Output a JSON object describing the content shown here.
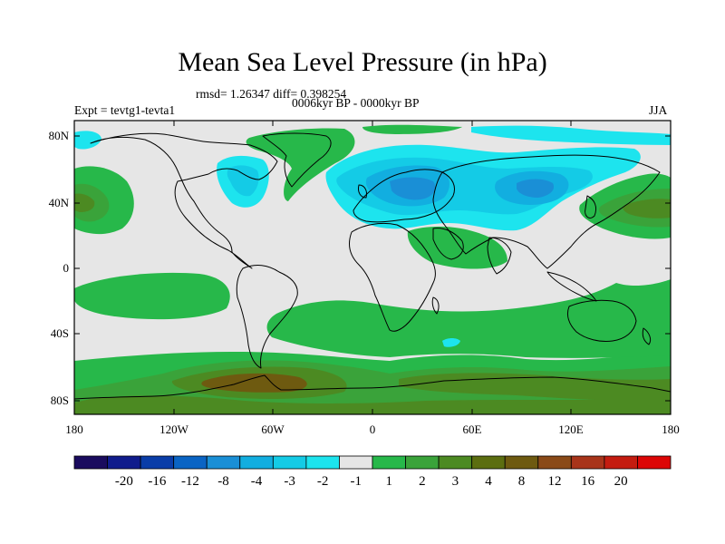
{
  "title": "Mean Sea Level Pressure (in hPa)",
  "stats": "rmsd= 1.26347 diff= 0.398254",
  "period": "0006kyr BP - 0000kyr BP",
  "experiment": "Expt = tevtg1-tevta1",
  "season": "JJA",
  "axes": {
    "lat_ticks": [
      "80N",
      "40N",
      "0",
      "40S",
      "80S"
    ],
    "lon_ticks": [
      "180",
      "120W",
      "60W",
      "0",
      "60E",
      "120E",
      "180"
    ]
  },
  "colorbar": {
    "colors": [
      "#1a0b5e",
      "#101c8c",
      "#0a3da8",
      "#0a64c4",
      "#1a8fd6",
      "#12aee0",
      "#14cbe6",
      "#1de4ee",
      "#e6e6e6",
      "#27b84a",
      "#3aa33a",
      "#4c8a22",
      "#5c6e10",
      "#6e5a10",
      "#8a4a18",
      "#a8341a",
      "#c41c10",
      "#dc0606"
    ],
    "labels": [
      "-20",
      "-16",
      "-12",
      "-8",
      "-4",
      "-3",
      "-2",
      "-1",
      "1",
      "2",
      "3",
      "4",
      "8",
      "12",
      "16",
      "20"
    ]
  },
  "map_colors": {
    "background": "#e6e6e6",
    "green_light": "#27b84a",
    "green_dark": "#3aa33a",
    "olive": "#4c8a22",
    "brown": "#6e5a10",
    "brown_dark": "#8a4a18",
    "cyan_light": "#1de4ee",
    "cyan": "#14cbe6",
    "blue_light": "#12aee0",
    "blue": "#1a8fd6"
  }
}
